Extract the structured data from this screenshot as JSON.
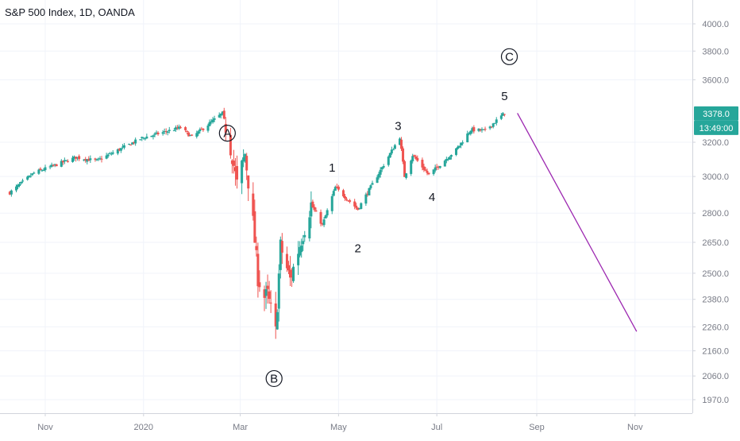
{
  "header": {
    "title": "S&P 500 Index, 1D, OANDA"
  },
  "price_scale": {
    "ticks": [
      "4000.0",
      "3800.0",
      "3600.0",
      "3200.0",
      "3000.0",
      "2800.0",
      "2650.0",
      "2500.0",
      "2380.0",
      "2260.0",
      "2160.0",
      "2060.0",
      "1970.0"
    ],
    "last_price": "3378.0",
    "countdown": "13:49:00"
  },
  "time_scale": {
    "labels": [
      "Nov",
      "2020",
      "Mar",
      "May",
      "Jul",
      "Sep",
      "Nov"
    ]
  },
  "colors": {
    "up": "#26a69a",
    "down": "#ef5350",
    "projection": "#9c27b0",
    "grid": "#f0f3fa",
    "axis_text": "#787b86"
  },
  "chart_data": {
    "type": "candlestick",
    "title": "S&P 500 Index, 1D, OANDA",
    "xlabel": "",
    "ylabel": "",
    "y_scale": "log",
    "ylim": [
      1900,
      4200
    ],
    "x_range": [
      "2019-10-10",
      "2020-12-10"
    ],
    "x_ticks": [
      {
        "date": "2019-11-01",
        "label": "Nov"
      },
      {
        "date": "2020-01-01",
        "label": "2020"
      },
      {
        "date": "2020-03-01",
        "label": "Mar"
      },
      {
        "date": "2020-05-01",
        "label": "May"
      },
      {
        "date": "2020-07-01",
        "label": "Jul"
      },
      {
        "date": "2020-09-01",
        "label": "Sep"
      },
      {
        "date": "2020-11-01",
        "label": "Nov"
      }
    ],
    "y_ticks": [
      4000,
      3800,
      3600,
      3200,
      3000,
      2800,
      2650,
      2500,
      2380,
      2260,
      2160,
      2060,
      1970
    ],
    "last_price": 3378.0,
    "series": [
      {
        "name": "S&P 500",
        "anchors": [
          [
            "2019-10-10",
            2910
          ],
          [
            "2019-10-25",
            3020
          ],
          [
            "2019-11-20",
            3110
          ],
          [
            "2019-12-03",
            3090
          ],
          [
            "2019-12-31",
            3225
          ],
          [
            "2020-01-24",
            3290
          ],
          [
            "2020-01-31",
            3230
          ],
          [
            "2020-02-19",
            3380
          ],
          [
            "2020-02-25",
            3120
          ],
          [
            "2020-02-28",
            2955
          ],
          [
            "2020-03-04",
            3130
          ],
          [
            "2020-03-09",
            2750
          ],
          [
            "2020-03-12",
            2480
          ],
          [
            "2020-03-16",
            2390
          ],
          [
            "2020-03-18",
            2400
          ],
          [
            "2020-03-23",
            2237
          ],
          [
            "2020-03-26",
            2630
          ],
          [
            "2020-04-01",
            2470
          ],
          [
            "2020-04-14",
            2846
          ],
          [
            "2020-04-21",
            2737
          ],
          [
            "2020-04-29",
            2939
          ],
          [
            "2020-05-13",
            2820
          ],
          [
            "2020-06-08",
            3232
          ],
          [
            "2020-06-11",
            3002
          ],
          [
            "2020-06-16",
            3124
          ],
          [
            "2020-06-26",
            3009
          ],
          [
            "2020-07-13",
            3155
          ],
          [
            "2020-07-22",
            3276
          ],
          [
            "2020-07-31",
            3271
          ],
          [
            "2020-08-12",
            3380
          ]
        ]
      }
    ],
    "projection": {
      "from": [
        "2020-08-20",
        3380
      ],
      "to": [
        "2020-11-02",
        2240
      ]
    },
    "annotations": [
      {
        "text": "A",
        "circled": true,
        "date": "2020-02-22",
        "price": 3255
      },
      {
        "text": "B",
        "circled": true,
        "date": "2020-03-22",
        "price": 2050
      },
      {
        "text": "C",
        "circled": true,
        "date": "2020-08-15",
        "price": 3760
      },
      {
        "text": "1",
        "date": "2020-04-27",
        "price": 3050
      },
      {
        "text": "2",
        "date": "2020-05-13",
        "price": 2620
      },
      {
        "text": "3",
        "date": "2020-06-07",
        "price": 3300
      },
      {
        "text": "4",
        "date": "2020-06-28",
        "price": 2885
      },
      {
        "text": "5",
        "date": "2020-08-12",
        "price": 3490
      }
    ]
  }
}
